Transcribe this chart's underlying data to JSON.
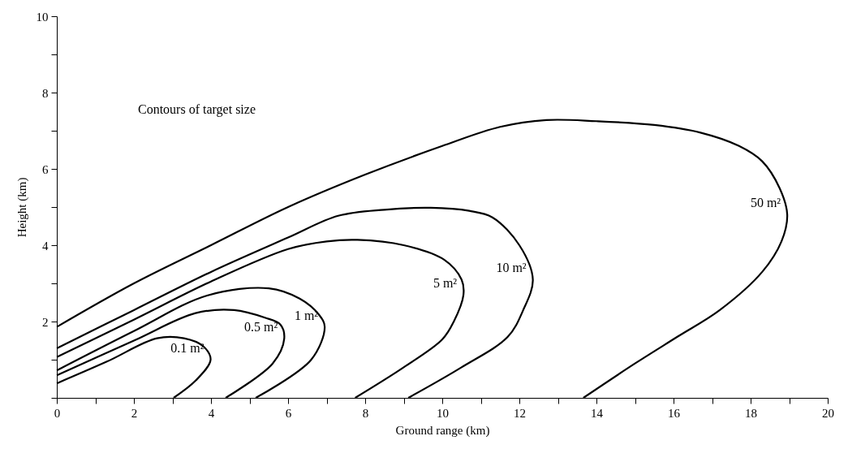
{
  "chart_data": {
    "type": "line",
    "xlabel": "Ground range (km)",
    "ylabel": "Height (km)",
    "annotations": [
      "Contours of target size"
    ],
    "xlim": [
      0,
      20
    ],
    "ylim": [
      0,
      10
    ],
    "xticks": [
      0,
      {
        "value": 1,
        "label": null
      },
      2,
      {
        "value": 3,
        "label": null
      },
      4,
      {
        "value": 5,
        "label": null
      },
      6,
      {
        "value": 7,
        "label": null
      },
      8,
      {
        "value": 9,
        "label": null
      },
      10,
      {
        "value": 11,
        "label": null
      },
      12,
      {
        "value": 13,
        "label": null
      },
      14,
      {
        "value": 15,
        "label": null
      },
      16,
      {
        "value": 17,
        "label": null
      },
      18,
      {
        "value": 19,
        "label": null
      },
      20
    ],
    "yticks": [
      {
        "value": 0,
        "label": null
      },
      {
        "value": 1,
        "label": null
      },
      2,
      {
        "value": 3,
        "label": null
      },
      4,
      {
        "value": 5,
        "label": null
      },
      6,
      {
        "value": 7,
        "label": null
      },
      8,
      {
        "value": 9,
        "label": null
      },
      10
    ],
    "line_style": "solid",
    "series": [
      {
        "name": "0.1 m²",
        "color": "#000000",
        "x": [
          0,
          1.3,
          2.6,
          3.3,
          3.8,
          3.99,
          3.6,
          3.03
        ],
        "values": [
          0.38,
          0.95,
          1.56,
          1.56,
          1.35,
          1.0,
          0.45,
          0
        ]
      },
      {
        "name": "0.5 m²",
        "color": "#000000",
        "x": [
          0,
          2,
          3.6,
          4.6,
          5.4,
          5.8,
          5.9,
          5.6,
          4.38
        ],
        "values": [
          0.59,
          1.5,
          2.22,
          2.3,
          2.1,
          1.92,
          1.55,
          0.9,
          0
        ]
      },
      {
        "name": "1 m²",
        "color": "#000000",
        "x": [
          0,
          2,
          3.9,
          5.5,
          6.3,
          6.8,
          6.95,
          6.6,
          5.16
        ],
        "values": [
          0.72,
          1.75,
          2.68,
          2.87,
          2.6,
          2.18,
          1.86,
          1.0,
          0
        ]
      },
      {
        "name": "5 m²",
        "color": "#000000",
        "x": [
          0,
          2,
          4,
          6,
          7,
          7.8,
          9,
          10.05,
          10.5,
          10.55,
          10.3,
          10.0,
          9,
          7.74
        ],
        "values": [
          1.07,
          2.05,
          3.05,
          3.9,
          4.1,
          4.14,
          4.0,
          3.62,
          3.1,
          2.7,
          2.0,
          1.53,
          0.8,
          0
        ]
      },
      {
        "name": "10 m²",
        "color": "#000000",
        "x": [
          0,
          2,
          4,
          6,
          7.3,
          8.5,
          9.7,
          10.7,
          11.3,
          12.0,
          12.35,
          12.1,
          11.7,
          10.5,
          9.12
        ],
        "values": [
          1.3,
          2.3,
          3.3,
          4.2,
          4.77,
          4.93,
          4.98,
          4.9,
          4.73,
          4.0,
          3.1,
          2.3,
          1.6,
          0.8,
          0
        ]
      },
      {
        "name": "50 m²",
        "color": "#000000",
        "x": [
          0,
          2,
          4,
          6,
          8,
          10,
          11.5,
          12.7,
          14,
          15.5,
          16.7,
          17.7,
          18.3,
          18.75,
          18.95,
          18.8,
          18.3,
          17.2,
          16.1,
          15,
          13.66
        ],
        "values": [
          1.86,
          3.0,
          4.0,
          5.0,
          5.85,
          6.6,
          7.1,
          7.28,
          7.25,
          7.15,
          6.95,
          6.6,
          6.2,
          5.5,
          4.8,
          4.1,
          3.3,
          2.3,
          1.6,
          0.9,
          0
        ]
      }
    ]
  }
}
